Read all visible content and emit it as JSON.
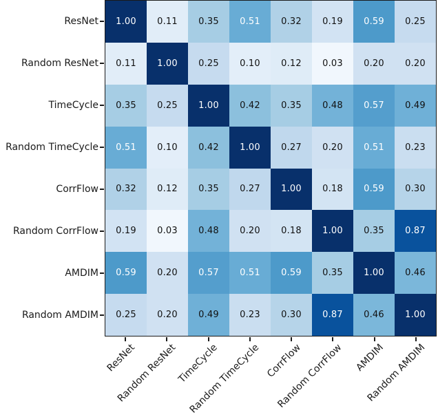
{
  "figure": {
    "background": "#ffffff",
    "spine_color": "#1a1a1a",
    "tick_color": "#1a1a1a",
    "tick_label_color": "#1a1a1a"
  },
  "chart_data": {
    "type": "heatmap",
    "title": "",
    "xlabel": "",
    "ylabel": "",
    "legend": "none",
    "grid": false,
    "categories": [
      "ResNet",
      "Random ResNet",
      "TimeCycle",
      "Random TimeCycle",
      "CorrFlow",
      "Random CorrFlow",
      "AMDIM",
      "Random AMDIM"
    ],
    "matrix": [
      [
        1.0,
        0.11,
        0.35,
        0.51,
        0.32,
        0.19,
        0.59,
        0.25
      ],
      [
        0.11,
        1.0,
        0.25,
        0.1,
        0.12,
        0.03,
        0.2,
        0.2
      ],
      [
        0.35,
        0.25,
        1.0,
        0.42,
        0.35,
        0.48,
        0.57,
        0.49
      ],
      [
        0.51,
        0.1,
        0.42,
        1.0,
        0.27,
        0.2,
        0.51,
        0.23
      ],
      [
        0.32,
        0.12,
        0.35,
        0.27,
        1.0,
        0.18,
        0.59,
        0.3
      ],
      [
        0.19,
        0.03,
        0.48,
        0.2,
        0.18,
        1.0,
        0.35,
        0.87
      ],
      [
        0.59,
        0.2,
        0.57,
        0.51,
        0.59,
        0.35,
        1.0,
        0.46
      ],
      [
        0.25,
        0.2,
        0.49,
        0.23,
        0.3,
        0.87,
        0.46,
        1.0
      ]
    ],
    "value_decimals": 2,
    "vmin": 0.0,
    "vmax": 1.0,
    "colormap": {
      "name": "Blues",
      "anchors": [
        [
          0.0,
          [
            247,
            251,
            255
          ]
        ],
        [
          0.125,
          [
            222,
            235,
            247
          ]
        ],
        [
          0.25,
          [
            198,
            219,
            239
          ]
        ],
        [
          0.375,
          [
            158,
            202,
            225
          ]
        ],
        [
          0.5,
          [
            107,
            174,
            214
          ]
        ],
        [
          0.625,
          [
            66,
            146,
            198
          ]
        ],
        [
          0.75,
          [
            33,
            113,
            181
          ]
        ],
        [
          0.875,
          [
            8,
            81,
            156
          ]
        ],
        [
          1.0,
          [
            8,
            48,
            107
          ]
        ]
      ]
    },
    "annotation_text_light": "#ffffff",
    "annotation_text_dark": "#111111",
    "light_text_threshold": 0.5
  }
}
